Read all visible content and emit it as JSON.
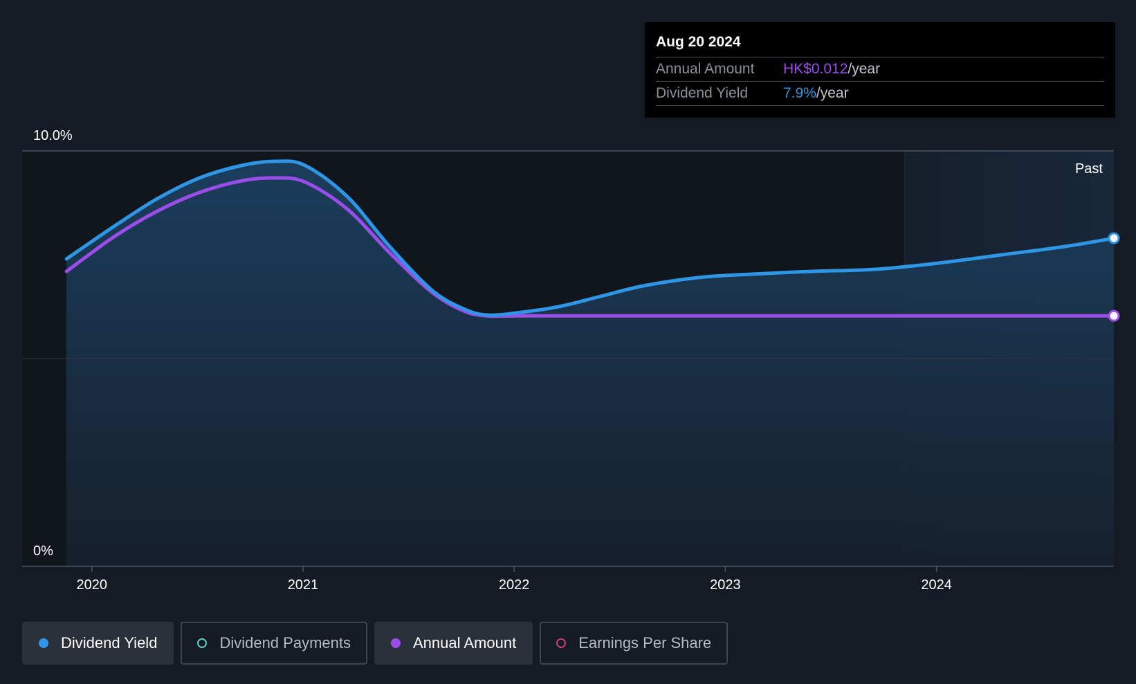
{
  "colors": {
    "background": "#151b24",
    "dividend_yield": "#2f96e6",
    "annual_amount": "#9a4de8",
    "dividend_payments": "#5ccfc4",
    "earnings_per_share": "#c2447d",
    "past_region": "#1c2a3b"
  },
  "tooltip": {
    "date": "Aug 20 2024",
    "annual_amount_label": "Annual Amount",
    "annual_amount_value": "HK$0.012",
    "annual_amount_suffix": "/year",
    "dividend_yield_label": "Dividend Yield",
    "dividend_yield_value": "7.9%",
    "dividend_yield_suffix": "/year"
  },
  "legend": [
    {
      "label": "Dividend Yield",
      "color": "#2f96e6",
      "filled": true,
      "active": true
    },
    {
      "label": "Dividend Payments",
      "color": "#5ccfc4",
      "filled": false,
      "active": false
    },
    {
      "label": "Annual Amount",
      "color": "#9a4de8",
      "filled": true,
      "active": true
    },
    {
      "label": "Earnings Per Share",
      "color": "#c2447d",
      "filled": false,
      "active": false
    }
  ],
  "chart_data": {
    "type": "area",
    "title": "",
    "xlabel": "",
    "ylabel": "",
    "ylim": [
      0,
      10
    ],
    "xlim": [
      2019.46,
      2024.63
    ],
    "y_tick_labels": [
      "0%",
      "10.0%"
    ],
    "x_tick_labels": [
      "2020",
      "2021",
      "2022",
      "2023",
      "2024"
    ],
    "x_ticks": [
      2019.79,
      2020.79,
      2021.79,
      2022.79,
      2023.79
    ],
    "past_label": "Past",
    "past_start": 2023.64,
    "grid": true,
    "legend_position": "bottom-left",
    "series": [
      {
        "name": "Dividend Yield",
        "unit": "%",
        "x": [
          2019.67,
          2019.9,
          2020.1,
          2020.3,
          2020.5,
          2020.66,
          2020.8,
          2021.0,
          2021.2,
          2021.4,
          2021.55,
          2021.66,
          2021.8,
          2022.0,
          2022.2,
          2022.4,
          2022.66,
          2022.9,
          2023.2,
          2023.5,
          2023.8,
          2024.1,
          2024.4,
          2024.63
        ],
        "values": [
          7.4,
          8.2,
          8.85,
          9.35,
          9.65,
          9.75,
          9.65,
          8.9,
          7.7,
          6.65,
          6.2,
          6.05,
          6.1,
          6.25,
          6.5,
          6.75,
          6.95,
          7.03,
          7.1,
          7.15,
          7.3,
          7.5,
          7.7,
          7.9
        ]
      },
      {
        "name": "Annual Amount",
        "unit": "%",
        "x": [
          2019.67,
          2019.9,
          2020.1,
          2020.3,
          2020.5,
          2020.66,
          2020.8,
          2021.0,
          2021.2,
          2021.4,
          2021.55,
          2021.66,
          2021.8,
          2022.0,
          2022.4,
          2022.8,
          2023.2,
          2023.6,
          2024.0,
          2024.4,
          2024.63
        ],
        "values": [
          7.1,
          7.95,
          8.55,
          9.0,
          9.28,
          9.35,
          9.25,
          8.6,
          7.55,
          6.6,
          6.15,
          6.03,
          6.03,
          6.03,
          6.03,
          6.03,
          6.03,
          6.03,
          6.03,
          6.03,
          6.03
        ]
      }
    ]
  }
}
